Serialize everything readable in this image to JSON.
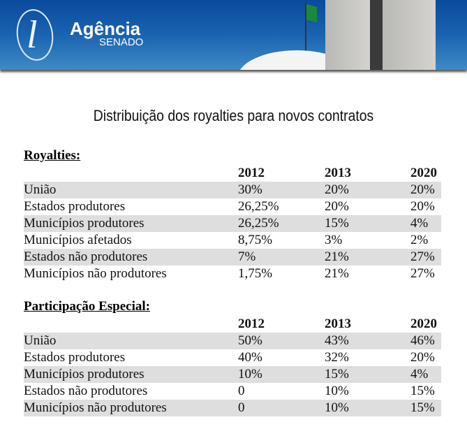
{
  "header": {
    "brand": "Agência",
    "brand_sub": "SENADO"
  },
  "chart_data": {
    "type": "table",
    "title": "Distribuição dos royalties para novos contratos",
    "columns": [
      "2012",
      "2013",
      "2020"
    ],
    "sections": [
      {
        "name": "Royalties:",
        "rows": [
          {
            "label": "União",
            "values": [
              "30%",
              "20%",
              "20%"
            ]
          },
          {
            "label": "Estados produtores",
            "values": [
              "26,25%",
              "20%",
              "20%"
            ]
          },
          {
            "label": "Municípios produtores",
            "values": [
              "26,25%",
              "15%",
              "4%"
            ]
          },
          {
            "label": "Municípios afetados",
            "values": [
              "8,75%",
              "3%",
              "2%"
            ]
          },
          {
            "label": "Estados não produtores",
            "values": [
              "7%",
              "21%",
              "27%"
            ]
          },
          {
            "label": "Municípios não produtores",
            "values": [
              "1,75%",
              "21%",
              "27%"
            ]
          }
        ]
      },
      {
        "name": "Participação Especial:",
        "rows": [
          {
            "label": "União",
            "values": [
              "50%",
              "43%",
              "46%"
            ]
          },
          {
            "label": "Estados produtores",
            "values": [
              "40%",
              "32%",
              "20%"
            ]
          },
          {
            "label": "Municípios produtores",
            "values": [
              "10%",
              "15%",
              "4%"
            ]
          },
          {
            "label": "Estados não produtores",
            "values": [
              "0",
              "10%",
              "15%"
            ]
          },
          {
            "label": "Municípios não produtores",
            "values": [
              "0",
              "10%",
              "15%"
            ]
          }
        ]
      }
    ]
  }
}
